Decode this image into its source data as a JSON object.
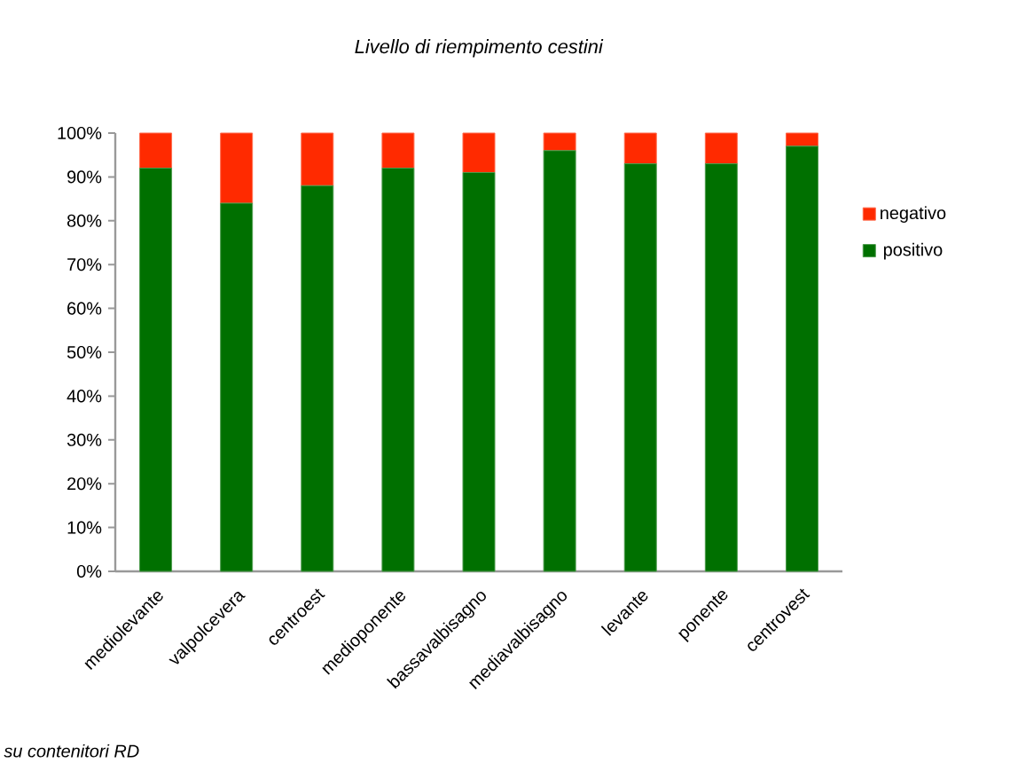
{
  "chart_data": {
    "type": "bar",
    "title": "*Livello di riempimento cestini*",
    "stacked": true,
    "categories": [
      "mediolevante",
      "valpolcevera",
      "centroest",
      "medioponente",
      "bassavalbisagno",
      "mediavalbisagno",
      "levante",
      "ponente",
      "centrovest"
    ],
    "series": [
      {
        "name": "positivo",
        "color": "#007000",
        "values": [
          92,
          84,
          88,
          92,
          91,
          96,
          93,
          93,
          97
        ]
      },
      {
        "name": "negativo",
        "color": "#ff2a00",
        "values": [
          8,
          16,
          12,
          8,
          9,
          4,
          7,
          7,
          3
        ]
      }
    ],
    "ylim": [
      0,
      100
    ],
    "yticks": [
      {
        "value": 0,
        "label": "0%"
      },
      {
        "value": 10,
        "label": "10%"
      },
      {
        "value": 20,
        "label": "20%"
      },
      {
        "value": 30,
        "label": "30%"
      },
      {
        "value": 40,
        "label": "40%"
      },
      {
        "value": 50,
        "label": "50%"
      },
      {
        "value": 60,
        "label": "60%"
      },
      {
        "value": 70,
        "label": "70%"
      },
      {
        "value": 80,
        "label": "80%"
      },
      {
        "value": 90,
        "label": "90%"
      },
      {
        "value": 100,
        "label": "100%"
      }
    ],
    "legend": "right",
    "grid": false,
    "annotations": [
      "*su contenitori RD*"
    ]
  }
}
